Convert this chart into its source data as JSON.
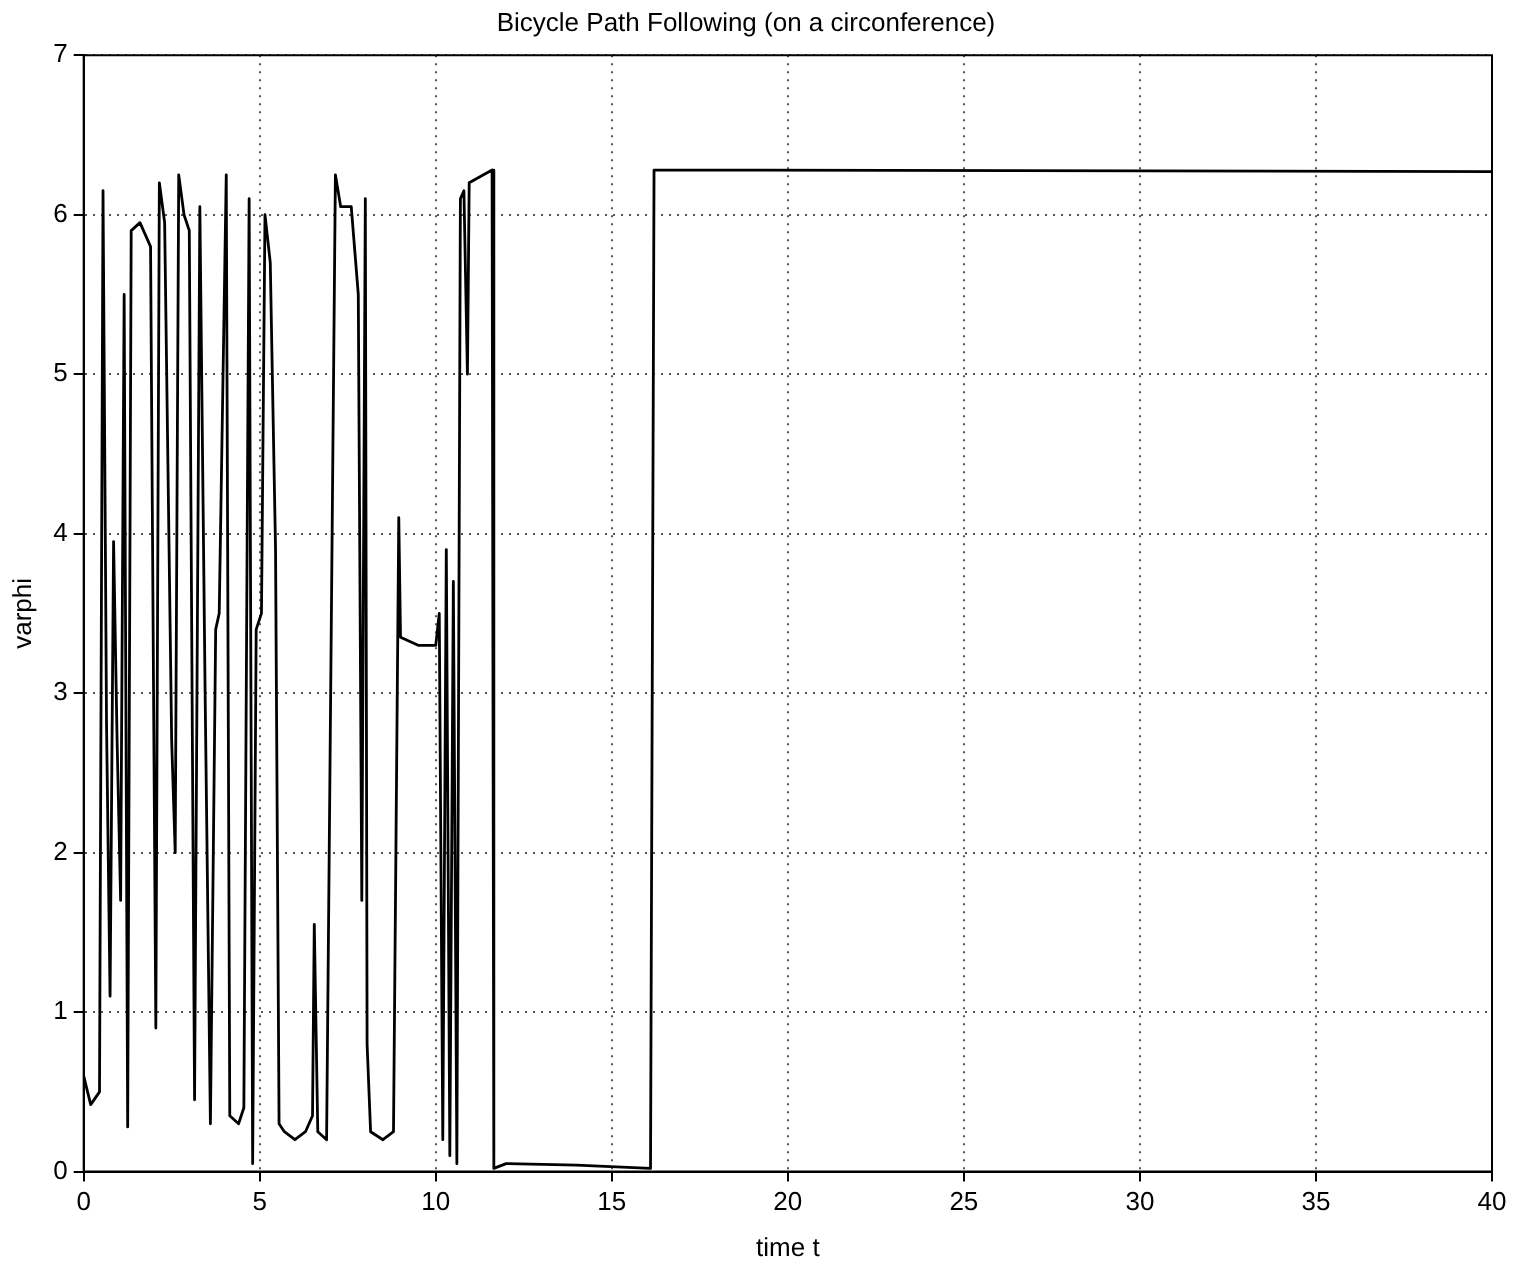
{
  "chart_data": {
    "type": "line",
    "title": "Bicycle Path Following (on a circonference)",
    "xlabel": "time t",
    "ylabel": "varphi",
    "xlim": [
      0,
      40
    ],
    "ylim": [
      0,
      7
    ],
    "xticks": [
      0,
      5,
      10,
      15,
      20,
      25,
      30,
      35,
      40
    ],
    "yticks": [
      0,
      1,
      2,
      3,
      4,
      5,
      6,
      7
    ],
    "grid": true,
    "line_style": "solid",
    "marker": "none",
    "series": [
      {
        "color": "#000000",
        "x": [
          0,
          0.2,
          0.45,
          0.55,
          0.65,
          0.75,
          0.85,
          0.95,
          1.05,
          1.15,
          1.25,
          1.35,
          1.6,
          1.9,
          2.05,
          2.15,
          2.3,
          2.5,
          2.6,
          2.7,
          2.85,
          3.0,
          3.15,
          3.3,
          3.45,
          3.6,
          3.75,
          3.85,
          4.05,
          4.15,
          4.4,
          4.55,
          4.7,
          4.8,
          4.9,
          5.05,
          5.15,
          5.2,
          5.3,
          5.45,
          5.55,
          5.7,
          6.0,
          6.3,
          6.5,
          6.55,
          6.65,
          6.9,
          7.15,
          7.3,
          7.6,
          7.8,
          7.9,
          8.0,
          8.05,
          8.15,
          8.5,
          8.8,
          8.95,
          9.0,
          9.5,
          10.0,
          10.1,
          10.2,
          10.3,
          10.4,
          10.5,
          10.6,
          10.7,
          10.8,
          10.9,
          10.95,
          11.6,
          11.65,
          12.0,
          14.0,
          16.1,
          16.15,
          16.2,
          18.0,
          40.0
        ],
        "values": [
          0.6,
          0.42,
          0.5,
          6.15,
          2.8,
          1.1,
          3.95,
          2.7,
          1.7,
          5.5,
          0.28,
          5.9,
          5.95,
          5.8,
          0.9,
          6.2,
          5.95,
          2.7,
          2.0,
          6.25,
          6.0,
          5.9,
          0.45,
          6.05,
          3.0,
          0.3,
          3.4,
          3.5,
          6.25,
          0.35,
          0.3,
          0.4,
          6.1,
          0.05,
          3.4,
          3.5,
          6.0,
          5.9,
          5.7,
          3.9,
          0.3,
          0.25,
          0.2,
          0.25,
          0.35,
          1.55,
          0.25,
          0.2,
          6.25,
          6.05,
          6.05,
          5.5,
          1.7,
          6.1,
          0.8,
          0.25,
          0.2,
          0.25,
          4.1,
          3.35,
          3.3,
          3.3,
          3.5,
          0.2,
          3.9,
          0.1,
          3.7,
          0.05,
          6.1,
          6.15,
          5.0,
          6.2,
          6.28,
          0.02,
          0.05,
          0.04,
          0.02,
          3.1,
          6.28,
          6.28,
          6.27
        ]
      }
    ]
  }
}
